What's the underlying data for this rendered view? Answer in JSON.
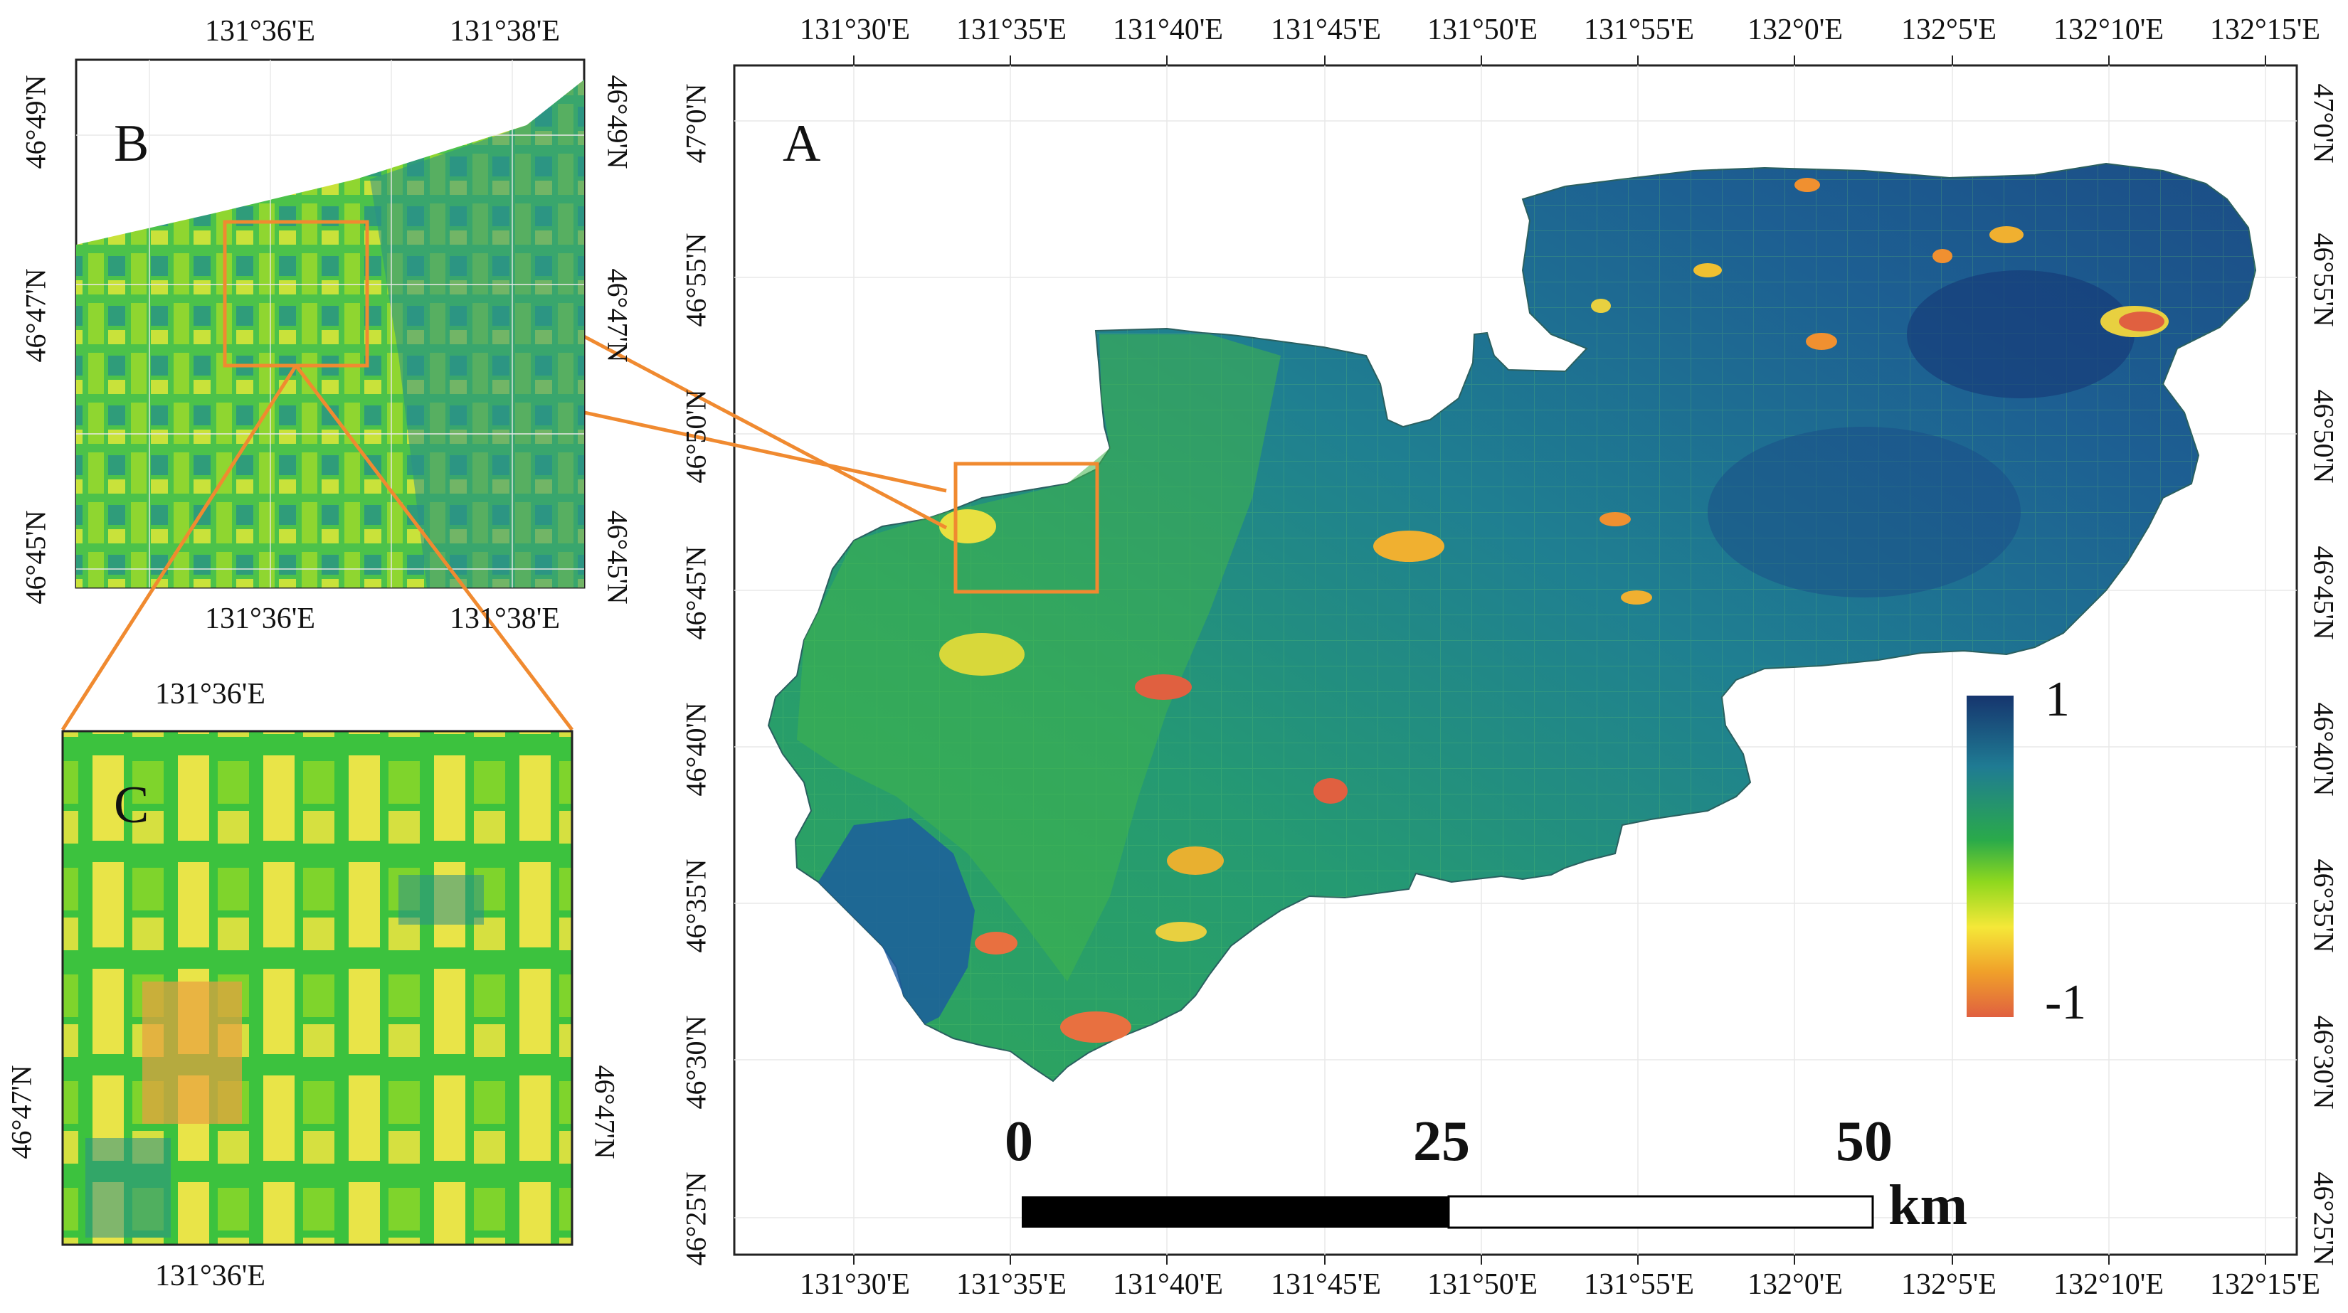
{
  "panel_a": {
    "letter": "A",
    "top_lon_labels": [
      "131°30'E",
      "131°35'E",
      "131°40'E",
      "131°45'E",
      "131°50'E",
      "131°55'E",
      "132°0'E",
      "132°5'E",
      "132°10'E",
      "132°15'E"
    ],
    "bottom_lon_labels": [
      "131°30'E",
      "131°35'E",
      "131°40'E",
      "131°45'E",
      "131°50'E",
      "131°55'E",
      "132°0'E",
      "132°5'E",
      "132°10'E",
      "132°15'E"
    ],
    "left_lat_labels": [
      "47°0'N",
      "46°55'N",
      "46°50'N",
      "46°45'N",
      "46°40'N",
      "46°35'N",
      "46°30'N",
      "46°25'N"
    ],
    "right_lat_labels": [
      "47°0'N",
      "46°55'N",
      "46°50'N",
      "46°45'N",
      "46°40'N",
      "46°35'N",
      "46°30'N",
      "46°25'N"
    ],
    "legend": {
      "max": "1",
      "min": "-1",
      "colors": [
        "#16356e",
        "#1f7b93",
        "#2aaa4a",
        "#8fd81e",
        "#f5e838",
        "#f0a02a",
        "#e06040"
      ]
    },
    "scale_bar": {
      "labels": [
        "0",
        "25",
        "50"
      ],
      "unit": "km"
    }
  },
  "panel_b": {
    "letter": "B",
    "top_lon_labels": [
      "131°36'E",
      "131°38'E"
    ],
    "bottom_lon_labels": [
      "131°36'E",
      "131°38'E"
    ],
    "left_lat_labels": [
      "46°49'N",
      "46°47'N",
      "46°45'N"
    ],
    "right_lat_labels": [
      "46°49'N",
      "46°47'N",
      "46°45'N"
    ]
  },
  "panel_c": {
    "letter": "C",
    "top_lon_labels": [
      "131°36'E"
    ],
    "bottom_lon_labels": [
      "131°36'E"
    ],
    "left_lat_labels": [
      "46°47'N"
    ],
    "right_lat_labels": [
      "46°47'N"
    ]
  },
  "colors": {
    "highlight": "#f08a30",
    "deep": "#1b4d86",
    "teal": "#1f8a8a",
    "green": "#39b54a",
    "yellow": "#f4e84a",
    "red": "#e05a38"
  }
}
